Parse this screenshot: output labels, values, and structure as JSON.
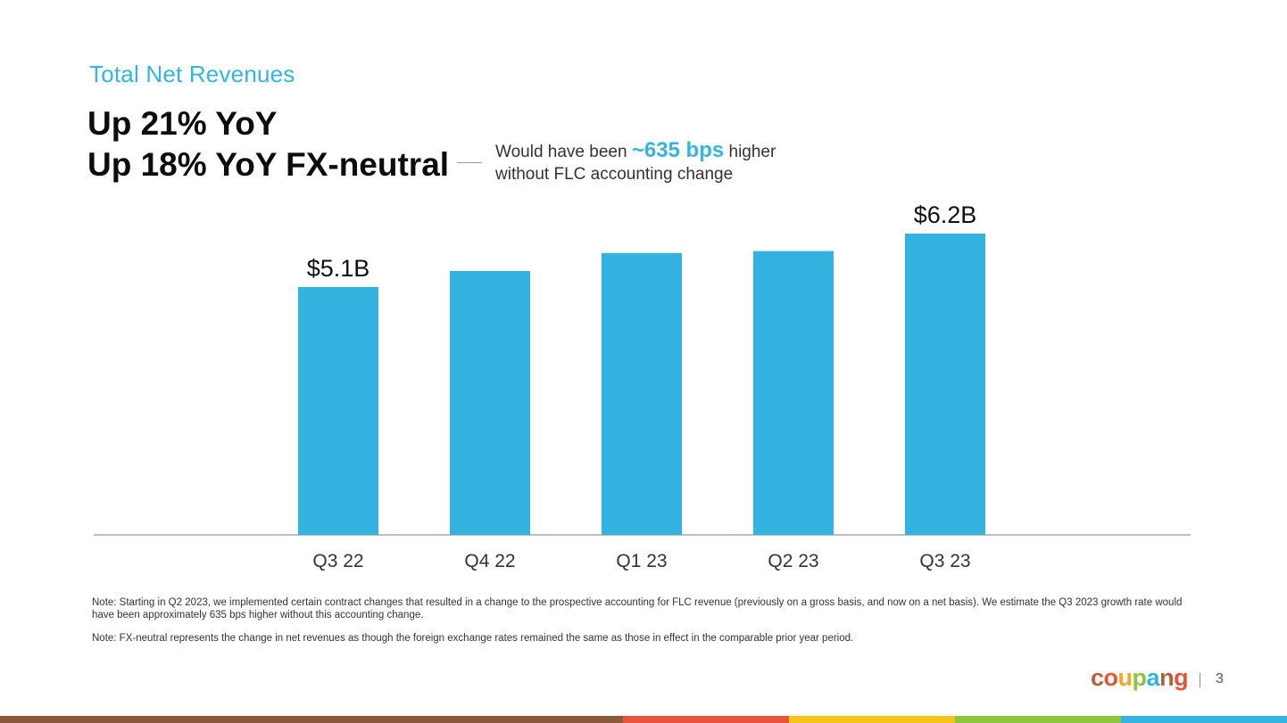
{
  "slide": {
    "section_title": "Total Net Revenues",
    "headline_line1": "Up 21% YoY",
    "headline_line2": "Up 18% YoY FX-neutral",
    "callout": {
      "prefix": "Would have been ",
      "highlight": "~635 bps",
      "suffix": " higher",
      "line2": "without FLC accounting change"
    },
    "notes": [
      "Note: Starting in Q2 2023, we implemented certain contract changes that resulted in a change to the prospective accounting for FLC revenue (previously on a gross basis, and now on a net basis). We estimate the Q3 2023 growth rate would have been approximately 635 bps higher without this accounting change.",
      "Note: FX-neutral represents the change in net revenues as though the foreign exchange rates remained the same as those in effect in the comparable prior year period."
    ],
    "logo_text": "coupang",
    "page_number": "3"
  },
  "colors": {
    "accent": "#35b4e0",
    "bar": "#33b3df",
    "axis": "#a8a8a8",
    "logo": [
      "#b0633a",
      "#e8543b",
      "#f5a623",
      "#8dc63f",
      "#35b4e0",
      "#b0633a",
      "#e8543b"
    ],
    "footer": [
      "#8b5a3c",
      "#8b5a3c",
      "#8b5a3c",
      "#e8543b",
      "#f6c319",
      "#8dc63f",
      "#35b4e0"
    ]
  },
  "chart_data": {
    "type": "bar",
    "title": "Total Net Revenues",
    "xlabel": "",
    "ylabel": "",
    "categories": [
      "Q3 22",
      "Q4 22",
      "Q1 23",
      "Q2 23",
      "Q3 23"
    ],
    "values": [
      5.1,
      5.43,
      5.8,
      5.84,
      6.2
    ],
    "units": "USD billions",
    "data_labels": [
      "$5.1B",
      "",
      "",
      "",
      "$6.2B"
    ],
    "ylim": [
      0,
      6.4
    ],
    "grid": false,
    "legend": "none"
  }
}
